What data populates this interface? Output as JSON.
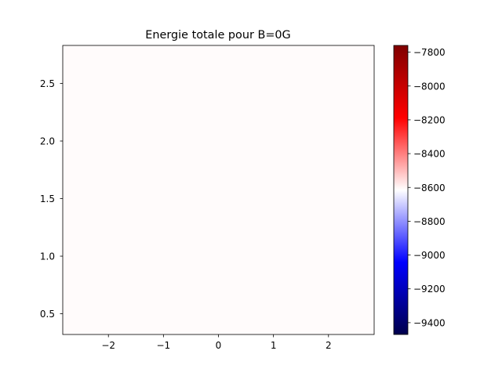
{
  "chart_data": {
    "type": "heatmap",
    "title": "Energie totale pour B=0G",
    "xlabel": "",
    "ylabel": "",
    "xlim": [
      -2.83,
      2.83
    ],
    "ylim": [
      0.32,
      2.83
    ],
    "xticks": [
      -2,
      -1,
      0,
      1,
      2
    ],
    "xtick_labels": [
      "−2",
      "−1",
      "0",
      "1",
      "2"
    ],
    "yticks": [
      0.5,
      1.0,
      1.5,
      2.0,
      2.5
    ],
    "ytick_labels": [
      "0.5",
      "1.0",
      "1.5",
      "2.0",
      "2.5"
    ],
    "field_value": -8600,
    "field_color": "#fffbfb",
    "grid": false,
    "colorbar": {
      "colormap": "seismic",
      "range": [
        -9470,
        -7760
      ],
      "ticks": [
        -9400,
        -9200,
        -9000,
        -8800,
        -8600,
        -8400,
        -8200,
        -8000,
        -7800
      ],
      "tick_labels": [
        "−9400",
        "−9200",
        "−9000",
        "−8800",
        "−8600",
        "−8400",
        "−8200",
        "−8000",
        "−7800"
      ],
      "colors": [
        "#00004c",
        "#0000ff",
        "#ffffff",
        "#ff0000",
        "#7f0000"
      ]
    }
  }
}
